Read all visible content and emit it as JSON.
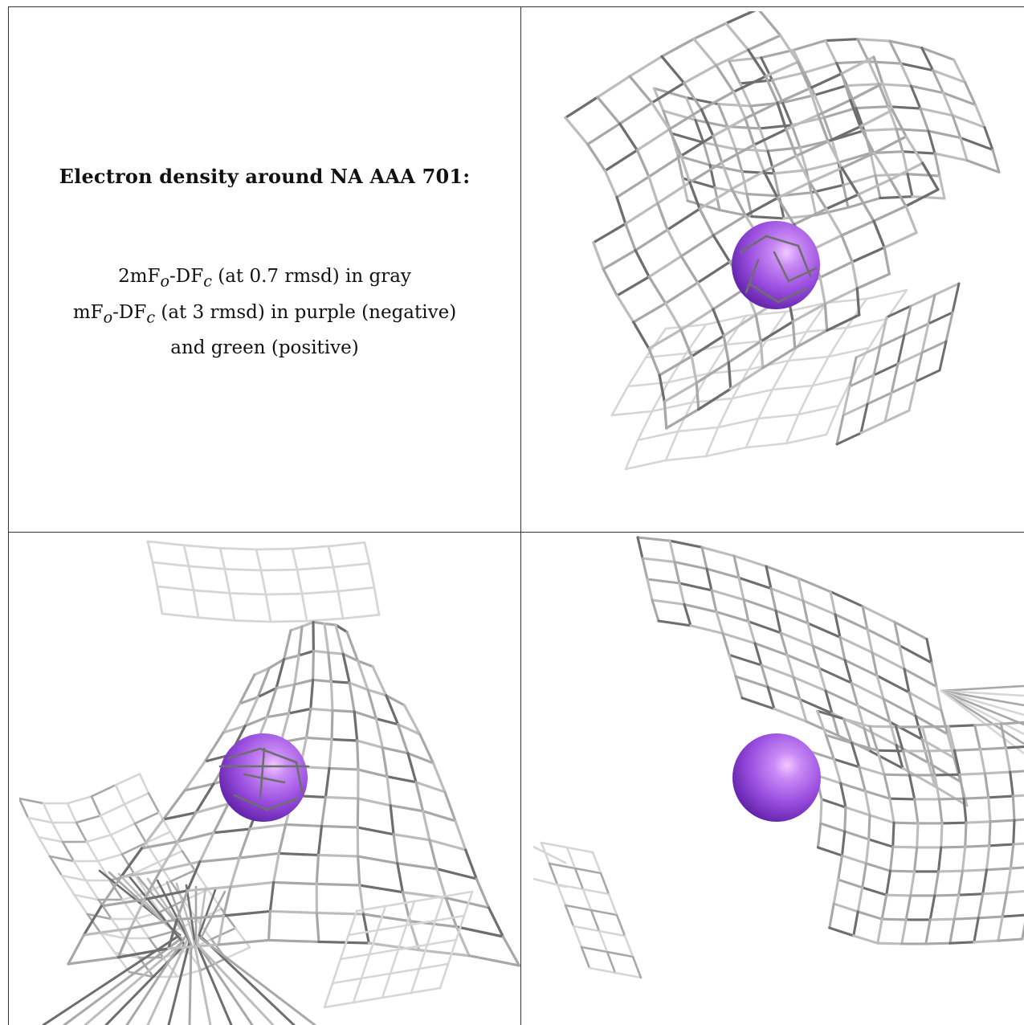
{
  "caption": {
    "title": "Electron density around NA AAA 701:",
    "line1": {
      "prefix": "2mF",
      "sub1": "o",
      "mid": "-DF",
      "sub2": "c",
      "rest": " (at 0.7 rmsd) in gray"
    },
    "line2": {
      "prefix": "mF",
      "sub1": "o",
      "mid": "-DF",
      "sub2": "c",
      "rest": " (at 3 rmsd) in purple (negative)"
    },
    "line3": "and green (positive)"
  },
  "colors": {
    "mesh_dark": "#6e6e6e",
    "mesh_mid": "#a8a8a8",
    "mesh_light": "#d6d6d6",
    "sphere_base": "#9b4fe0",
    "sphere_highlight": "#f2c8ff",
    "sphere_shadow": "#5e1fa6"
  },
  "panels": [
    {
      "view": "top-right",
      "atom": "sodium-ion-sphere"
    },
    {
      "view": "bottom-left",
      "atom": "sodium-ion-sphere"
    },
    {
      "view": "bottom-right",
      "atom": "sodium-ion-sphere"
    }
  ]
}
